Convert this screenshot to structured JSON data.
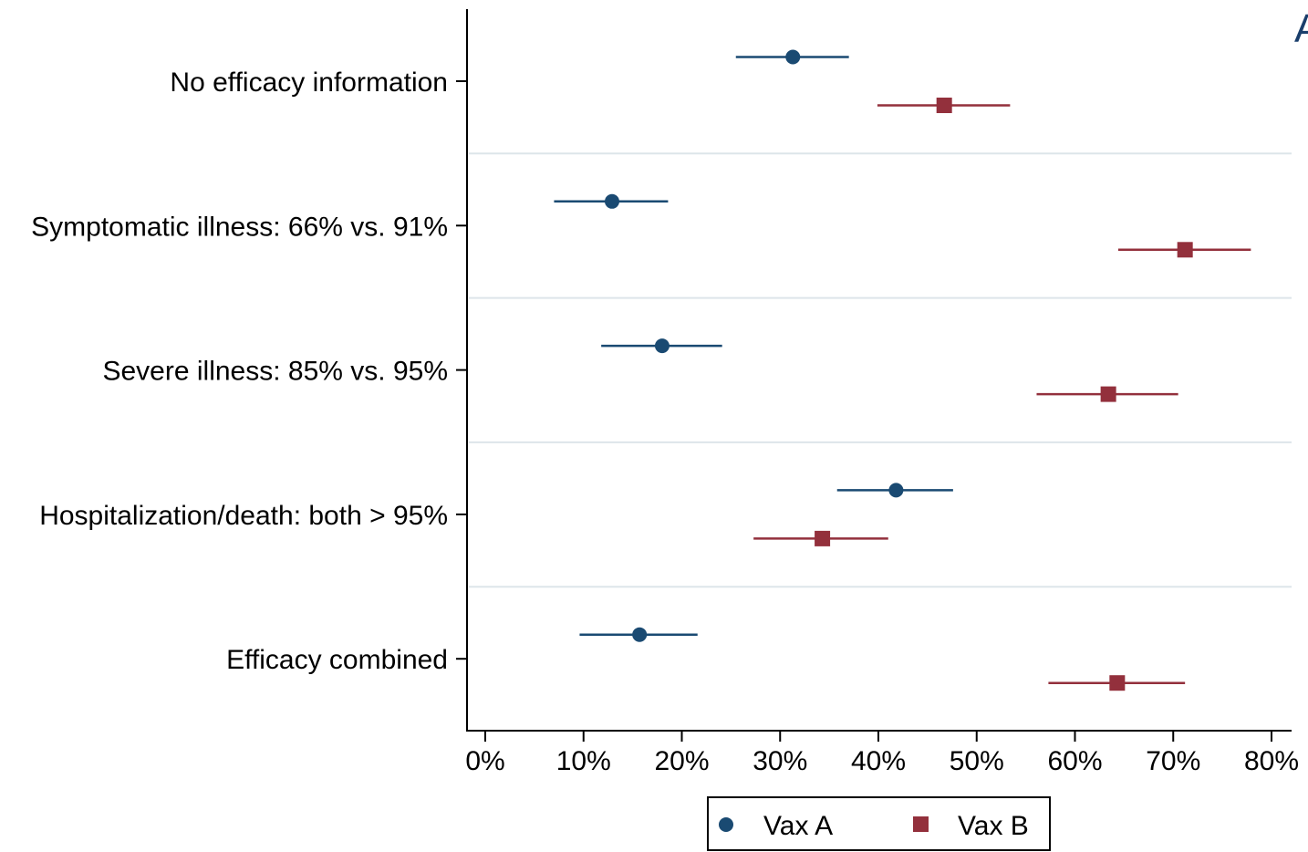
{
  "chart_data": {
    "type": "scatter",
    "panel_letter": "A",
    "title": "",
    "xlabel": "",
    "ylabel": "",
    "categories": [
      "No efficacy information",
      "Symptomatic illness: 66% vs. 91%",
      "Severe illness: 85% vs. 95%",
      "Hospitalization/death: both > 95%",
      "Efficacy combined"
    ],
    "x_ticks": [
      "0%",
      "10%",
      "20%",
      "30%",
      "40%",
      "50%",
      "60%",
      "70%",
      "80%"
    ],
    "xlim": [
      0,
      80
    ],
    "grid": "horizontal separators between categories",
    "legend_position": "bottom",
    "series": [
      {
        "name": "Vax A",
        "color": "#1a4a72",
        "marker": "circle",
        "points": [
          {
            "value": 31.3,
            "ci_low": 25.5,
            "ci_high": 37.0
          },
          {
            "value": 12.9,
            "ci_low": 7.0,
            "ci_high": 18.6
          },
          {
            "value": 18.0,
            "ci_low": 11.8,
            "ci_high": 24.1
          },
          {
            "value": 41.8,
            "ci_low": 35.8,
            "ci_high": 47.6
          },
          {
            "value": 15.7,
            "ci_low": 9.6,
            "ci_high": 21.6
          }
        ]
      },
      {
        "name": "Vax B",
        "color": "#93303c",
        "marker": "square",
        "points": [
          {
            "value": 46.7,
            "ci_low": 39.9,
            "ci_high": 53.4
          },
          {
            "value": 71.2,
            "ci_low": 64.4,
            "ci_high": 77.9
          },
          {
            "value": 63.4,
            "ci_low": 56.1,
            "ci_high": 70.5
          },
          {
            "value": 34.3,
            "ci_low": 27.3,
            "ci_high": 41.0
          },
          {
            "value": 64.3,
            "ci_low": 57.3,
            "ci_high": 71.2
          }
        ]
      }
    ]
  }
}
